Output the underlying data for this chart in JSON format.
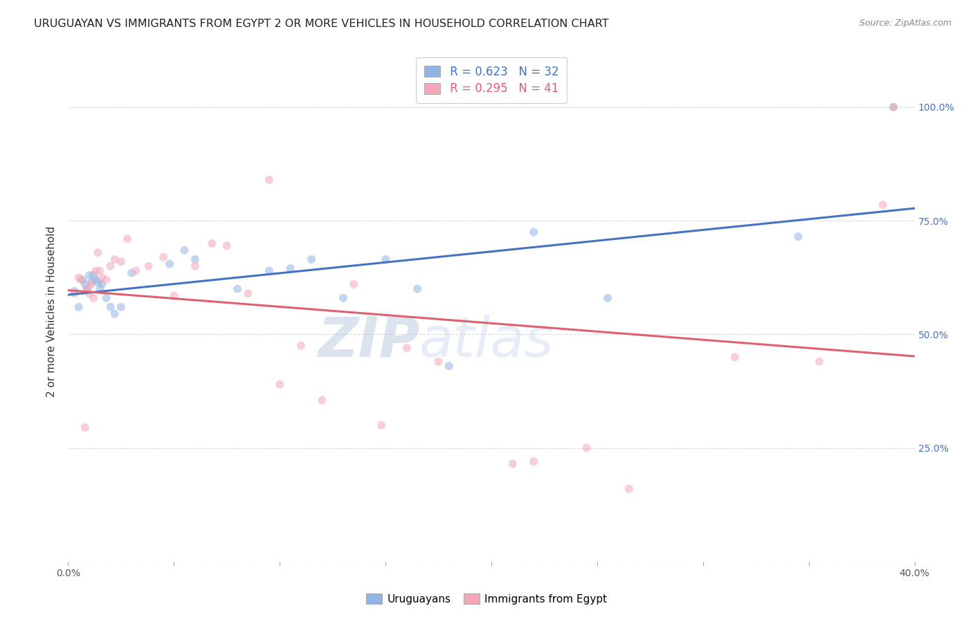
{
  "title": "URUGUAYAN VS IMMIGRANTS FROM EGYPT 2 OR MORE VEHICLES IN HOUSEHOLD CORRELATION CHART",
  "source": "Source: ZipAtlas.com",
  "ylabel": "2 or more Vehicles in Household",
  "xlim": [
    0.0,
    0.4
  ],
  "ylim": [
    0.0,
    1.1
  ],
  "yticks": [
    0.0,
    0.25,
    0.5,
    0.75,
    1.0
  ],
  "ytick_labels": [
    "",
    "25.0%",
    "50.0%",
    "75.0%",
    "100.0%"
  ],
  "xticks": [
    0.0,
    0.05,
    0.1,
    0.15,
    0.2,
    0.25,
    0.3,
    0.35,
    0.4
  ],
  "blue_color": "#92b4e3",
  "pink_color": "#f4a7b9",
  "blue_line_color": "#4472c4",
  "pink_line_color": "#e06070",
  "legend_label_blue": "Uruguayans",
  "legend_label_pink": "Immigrants from Egypt",
  "blue_x": [
    0.003,
    0.005,
    0.007,
    0.008,
    0.009,
    0.01,
    0.011,
    0.012,
    0.013,
    0.014,
    0.015,
    0.016,
    0.018,
    0.02,
    0.022,
    0.025,
    0.03,
    0.048,
    0.055,
    0.06,
    0.08,
    0.095,
    0.105,
    0.115,
    0.13,
    0.15,
    0.165,
    0.18,
    0.22,
    0.255,
    0.345,
    0.39
  ],
  "blue_y": [
    0.595,
    0.56,
    0.62,
    0.61,
    0.6,
    0.63,
    0.615,
    0.63,
    0.62,
    0.615,
    0.6,
    0.61,
    0.58,
    0.56,
    0.545,
    0.56,
    0.635,
    0.655,
    0.685,
    0.665,
    0.6,
    0.64,
    0.645,
    0.665,
    0.58,
    0.665,
    0.6,
    0.43,
    0.725,
    0.58,
    0.715,
    1.0
  ],
  "pink_x": [
    0.003,
    0.005,
    0.006,
    0.008,
    0.009,
    0.01,
    0.011,
    0.012,
    0.013,
    0.014,
    0.015,
    0.016,
    0.018,
    0.02,
    0.022,
    0.025,
    0.028,
    0.032,
    0.038,
    0.045,
    0.05,
    0.06,
    0.068,
    0.075,
    0.085,
    0.095,
    0.1,
    0.11,
    0.12,
    0.135,
    0.148,
    0.16,
    0.175,
    0.21,
    0.22,
    0.245,
    0.265,
    0.315,
    0.355,
    0.385,
    0.39
  ],
  "pink_y": [
    0.59,
    0.625,
    0.62,
    0.295,
    0.6,
    0.59,
    0.61,
    0.58,
    0.64,
    0.68,
    0.64,
    0.625,
    0.62,
    0.65,
    0.665,
    0.66,
    0.71,
    0.64,
    0.65,
    0.67,
    0.585,
    0.65,
    0.7,
    0.695,
    0.59,
    0.84,
    0.39,
    0.475,
    0.355,
    0.61,
    0.3,
    0.47,
    0.44,
    0.215,
    0.22,
    0.25,
    0.16,
    0.45,
    0.44,
    0.785,
    1.0
  ],
  "watermark_zip": "ZIP",
  "watermark_atlas": "atlas",
  "background_color": "#ffffff",
  "grid_color": "#d0d0d0",
  "title_fontsize": 11.5,
  "axis_label_fontsize": 11,
  "tick_fontsize": 10,
  "marker_size": 75,
  "marker_alpha": 0.55,
  "line_width": 2.2
}
